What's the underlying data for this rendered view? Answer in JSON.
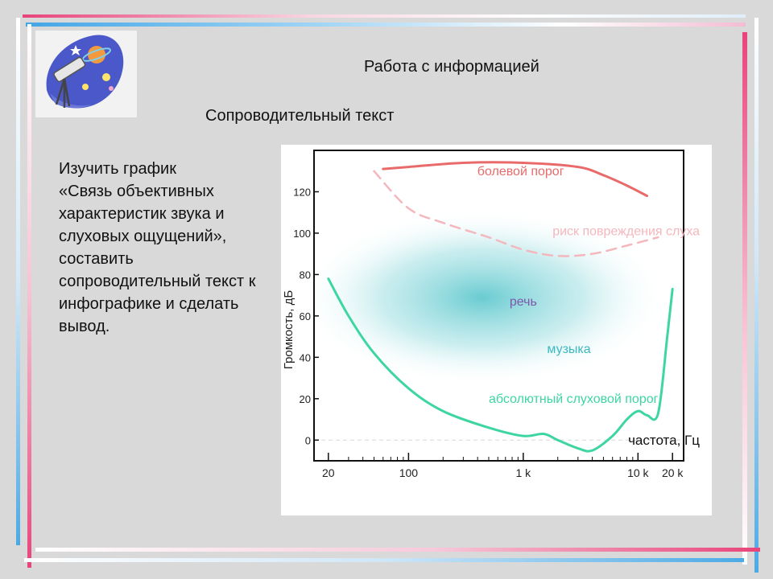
{
  "slide": {
    "title": "Работа с информацией",
    "subtitle": "Сопроводительный текст",
    "task_text": "Изучить график\n«Связь объективных характеристик звука и слуховых ощущений», составить сопроводительный текст к инфографике и сделать вывод.",
    "colors": {
      "pink": "#e8447a",
      "blue": "#5ab0e8",
      "background": "#d9d9d9"
    },
    "logo_icon": "telescope-astronomy-icon"
  },
  "chart_data": {
    "type": "line",
    "xlabel": "частота, Гц",
    "ylabel": "Громкость, дБ",
    "x_scale": "log",
    "xlim": [
      15,
      25000
    ],
    "ylim": [
      -10,
      140
    ],
    "x_ticks": [
      20,
      100,
      1000,
      10000,
      20000
    ],
    "x_tick_labels": [
      "20",
      "100",
      "1 k",
      "10 k",
      "20 k"
    ],
    "y_ticks": [
      0,
      20,
      40,
      60,
      80,
      100,
      120
    ],
    "y_tick_labels": [
      "0",
      "20",
      "40",
      "60",
      "80",
      "100",
      "120"
    ],
    "series": [
      {
        "name": "болевой порог",
        "color": "#e86a6a",
        "style": "solid",
        "x": [
          60,
          100,
          300,
          1000,
          3000,
          5000,
          8000,
          12000
        ],
        "y": [
          131,
          132,
          134,
          134,
          132,
          128,
          123,
          118
        ]
      },
      {
        "name": "риск повреждения слуха",
        "color": "#f4b7bd",
        "style": "dashed",
        "x": [
          50,
          100,
          200,
          500,
          1000,
          2000,
          4000,
          8000,
          15000
        ],
        "y": [
          130,
          112,
          105,
          98,
          92,
          89,
          90,
          94,
          98
        ]
      },
      {
        "name": "абсолютный слуховой порог",
        "color": "#3ed6a0",
        "style": "solid",
        "x": [
          20,
          30,
          50,
          100,
          200,
          500,
          1000,
          1500,
          2000,
          3000,
          4000,
          6000,
          8000,
          10000,
          12000,
          15000,
          18000,
          20000
        ],
        "y": [
          78,
          60,
          42,
          25,
          14,
          6,
          2,
          3,
          0,
          -4,
          -5,
          2,
          10,
          14,
          12,
          13,
          50,
          73
        ]
      }
    ],
    "regions": [
      {
        "name": "речь",
        "color": "#4fc3c9",
        "center_x": 1000,
        "center_y": 65
      },
      {
        "name": "музыка",
        "color": "#4fc3c9",
        "center_x": 2500,
        "center_y": 42
      }
    ]
  }
}
